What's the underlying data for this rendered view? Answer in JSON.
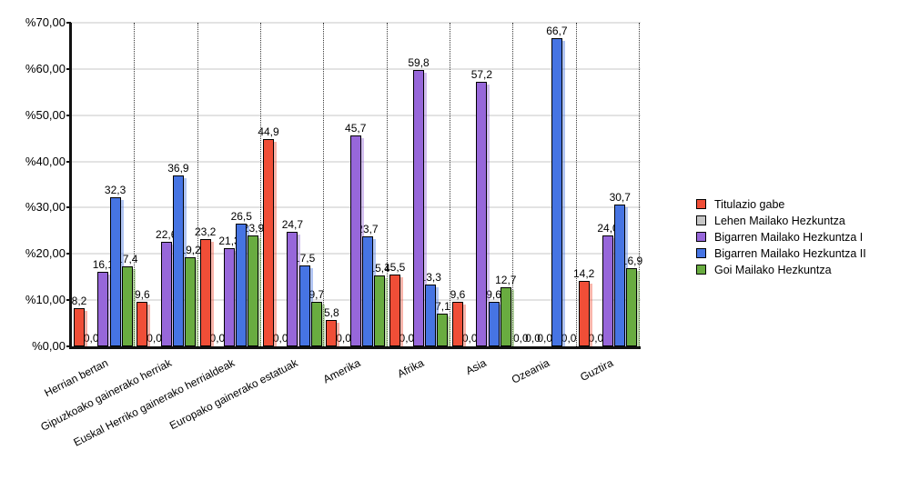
{
  "chart_data": {
    "type": "bar",
    "title": "",
    "xlabel": "",
    "ylabel": "",
    "ylim": [
      0,
      70
    ],
    "y_ticks": [
      "%0,00",
      "%10,00",
      "%20,00",
      "%30,00",
      "%40,00",
      "%50,00",
      "%60,00",
      "%70,00"
    ],
    "grid": "horizontal solid gray, vertical dotted category separators",
    "legend_position": "right",
    "decimal_separator": ",",
    "categories": [
      "Herrian bertan",
      "Gipuzkoako gainerako herriak",
      "Euskal Herriko gainerako herrialdeak",
      "Europako gainerako estatuak",
      "Amerika",
      "Afrika",
      "Asia",
      "Ozeania",
      "Guztira"
    ],
    "series": [
      {
        "name": "Titulazio gabe",
        "color": "#F04E37",
        "values": [
          8.2,
          9.6,
          23.2,
          44.9,
          5.8,
          15.5,
          9.6,
          0.0,
          14.2
        ]
      },
      {
        "name": "Lehen Mailako Hezkuntza",
        "color": "#C6C6C6",
        "values": [
          0.0,
          0.0,
          0.0,
          0.0,
          0.0,
          0.0,
          0.0,
          0.0,
          0.0
        ]
      },
      {
        "name": "Bigarren Mailako Hezkuntza I",
        "color": "#9767DA",
        "values": [
          16.1,
          22.6,
          21.3,
          24.7,
          45.7,
          59.8,
          57.2,
          0.0,
          24.0
        ]
      },
      {
        "name": "Bigarren Mailako Hezkuntza II",
        "color": "#4674E3",
        "values": [
          32.3,
          36.9,
          26.5,
          17.5,
          23.7,
          13.3,
          9.6,
          66.7,
          30.7
        ]
      },
      {
        "name": "Goi Mailako Hezkuntza",
        "color": "#69AC40",
        "values": [
          17.4,
          19.2,
          23.9,
          9.7,
          15.4,
          7.1,
          12.7,
          0.0,
          16.9
        ]
      }
    ],
    "colors": {
      "background": "#FFFFFF",
      "axis": "#111111",
      "gridline": "#E3E3E3",
      "separator_dots": "#3A3A3A",
      "label_text": "#000000"
    }
  }
}
